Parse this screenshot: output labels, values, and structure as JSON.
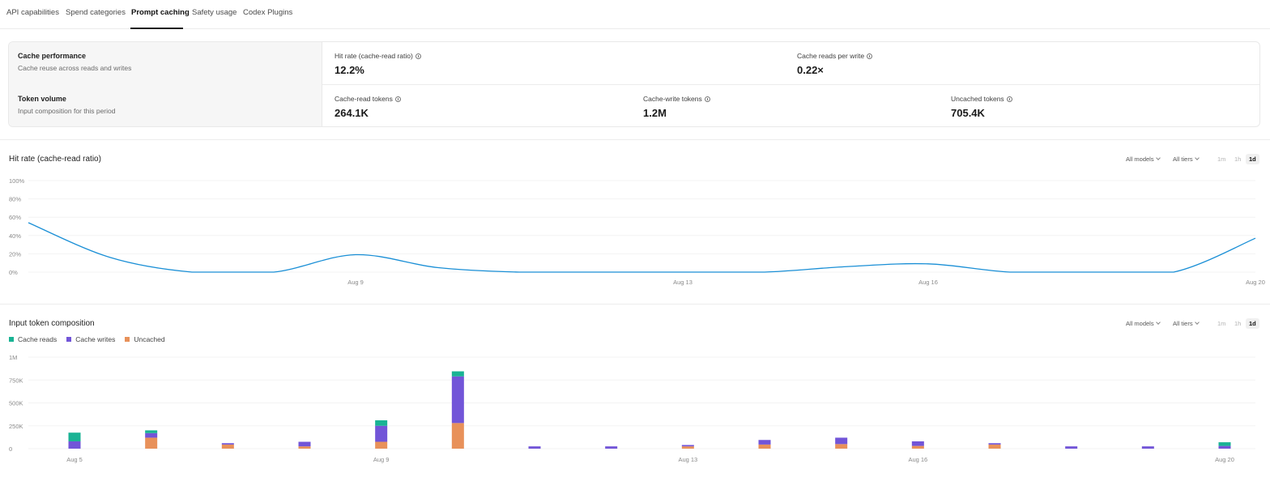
{
  "tabs": [
    {
      "label": "API capabilities",
      "active": false
    },
    {
      "label": "Spend categories",
      "active": false
    },
    {
      "label": "Prompt caching",
      "active": true
    },
    {
      "label": "Safety usage",
      "active": false
    },
    {
      "label": "Codex Plugins",
      "active": false
    }
  ],
  "summary": {
    "cache_performance": {
      "title": "Cache performance",
      "subtitle": "Cache reuse across reads and writes",
      "metrics": [
        {
          "label": "Hit rate (cache-read ratio)",
          "value": "12.2%"
        },
        {
          "label": "Cache reads per write",
          "value": "0.22×"
        }
      ]
    },
    "token_volume": {
      "title": "Token volume",
      "subtitle": "Input composition for this period",
      "metrics": [
        {
          "label": "Cache-read tokens",
          "value": "264.1K"
        },
        {
          "label": "Cache-write tokens",
          "value": "1.2M"
        },
        {
          "label": "Uncached tokens",
          "value": "705.4K"
        }
      ]
    }
  },
  "controls": {
    "models": "All models",
    "tiers": "All tiers",
    "granularity": [
      "1m",
      "1h",
      "1d"
    ],
    "granularity_selected": "1d"
  },
  "colors": {
    "line": "#1a8fd6",
    "cache_reads": "#19b394",
    "cache_writes": "#7255d8",
    "uncached": "#e8915a"
  },
  "chart_data": [
    {
      "type": "line",
      "title": "Hit rate (cache-read ratio)",
      "yticks": [
        "100%",
        "80%",
        "60%",
        "40%",
        "20%",
        "0%"
      ],
      "ylim": [
        0,
        100
      ],
      "xticks": [
        {
          "label": "Aug 9",
          "day": 9
        },
        {
          "label": "Aug 13",
          "day": 13
        },
        {
          "label": "Aug 16",
          "day": 16
        },
        {
          "label": "Aug 20",
          "day": 20
        }
      ],
      "series": [
        {
          "points": [
            {
              "day": 5,
              "value": 54
            },
            {
              "day": 6,
              "value": 16
            },
            {
              "day": 7,
              "value": 0
            },
            {
              "day": 8,
              "value": 0
            },
            {
              "day": 9,
              "value": 19
            },
            {
              "day": 10,
              "value": 5
            },
            {
              "day": 11,
              "value": 0
            },
            {
              "day": 12,
              "value": 0
            },
            {
              "day": 13,
              "value": 0
            },
            {
              "day": 14,
              "value": 0
            },
            {
              "day": 15,
              "value": 6
            },
            {
              "day": 16,
              "value": 9
            },
            {
              "day": 17,
              "value": 0
            },
            {
              "day": 18,
              "value": 0
            },
            {
              "day": 19,
              "value": 0
            },
            {
              "day": 20,
              "value": 37
            }
          ]
        }
      ],
      "grid": true
    },
    {
      "type": "bar",
      "stacked": true,
      "title": "Input token composition",
      "legend": [
        "Cache reads",
        "Cache writes",
        "Uncached"
      ],
      "yticks": [
        "1M",
        "750K",
        "500K",
        "250K",
        "0"
      ],
      "ylim": [
        0,
        1000000
      ],
      "xticks": [
        {
          "label": "Aug 5",
          "day": 5
        },
        {
          "label": "Aug 9",
          "day": 9
        },
        {
          "label": "Aug 13",
          "day": 13
        },
        {
          "label": "Aug 16",
          "day": 16
        },
        {
          "label": "Aug 20",
          "day": 20
        }
      ],
      "bars": [
        {
          "day": 5,
          "cache_reads": 95000,
          "cache_writes": 80000,
          "uncached": 0
        },
        {
          "day": 6,
          "cache_reads": 30000,
          "cache_writes": 50000,
          "uncached": 120000
        },
        {
          "day": 7,
          "cache_reads": 0,
          "cache_writes": 15000,
          "uncached": 45000
        },
        {
          "day": 8,
          "cache_reads": 0,
          "cache_writes": 50000,
          "uncached": 25000
        },
        {
          "day": 9,
          "cache_reads": 60000,
          "cache_writes": 175000,
          "uncached": 75000
        },
        {
          "day": 10,
          "cache_reads": 55000,
          "cache_writes": 510000,
          "uncached": 280000
        },
        {
          "day": 11,
          "cache_reads": 0,
          "cache_writes": 25000,
          "uncached": 0
        },
        {
          "day": 12,
          "cache_reads": 0,
          "cache_writes": 25000,
          "uncached": 0
        },
        {
          "day": 13,
          "cache_reads": 0,
          "cache_writes": 15000,
          "uncached": 25000
        },
        {
          "day": 14,
          "cache_reads": 0,
          "cache_writes": 50000,
          "uncached": 45000
        },
        {
          "day": 15,
          "cache_reads": 0,
          "cache_writes": 70000,
          "uncached": 50000
        },
        {
          "day": 16,
          "cache_reads": 0,
          "cache_writes": 50000,
          "uncached": 30000
        },
        {
          "day": 17,
          "cache_reads": 0,
          "cache_writes": 15000,
          "uncached": 45000
        },
        {
          "day": 18,
          "cache_reads": 0,
          "cache_writes": 25000,
          "uncached": 0
        },
        {
          "day": 19,
          "cache_reads": 0,
          "cache_writes": 25000,
          "uncached": 0
        },
        {
          "day": 20,
          "cache_reads": 40000,
          "cache_writes": 30000,
          "uncached": 0
        }
      ],
      "grid": true
    }
  ]
}
